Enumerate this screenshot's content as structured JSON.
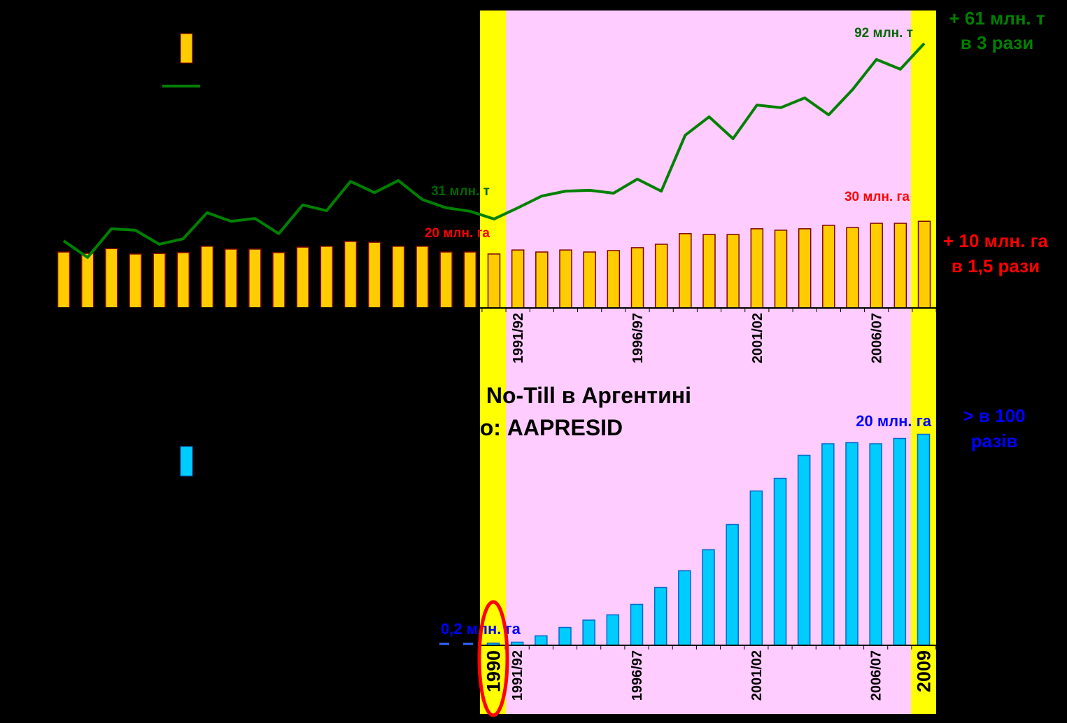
{
  "chart_data": [
    {
      "type": "bar",
      "categories": [
        null,
        null,
        null,
        null,
        null,
        null,
        null,
        null,
        null,
        null,
        null,
        null,
        null,
        null,
        null,
        null,
        null,
        null,
        null,
        "1991/92",
        null,
        null,
        null,
        null,
        "1996/97",
        null,
        null,
        null,
        null,
        "2001/02",
        null,
        null,
        null,
        null,
        "2006/07",
        null,
        null
      ],
      "series": [
        {
          "type": "bar",
          "color": "#ffcc00",
          "values": [
            19.5,
            19,
            20.7,
            18.8,
            19,
            19.3,
            21.5,
            20.5,
            20.5,
            19.3,
            21.2,
            21.5,
            23.2,
            22.9,
            21.5,
            21.5,
            19.5,
            19.5,
            18.8,
            20.2,
            19.5,
            20.2,
            19.5,
            20,
            21,
            22.2,
            25.9,
            25.6,
            25.6,
            27.6,
            27.1,
            27.6,
            28.8,
            28,
            29.5,
            29.5,
            30.2
          ]
        },
        {
          "type": "line",
          "color": "#008000",
          "values": [
            23.4,
            17.6,
            27.6,
            27.1,
            22.2,
            24.1,
            33.2,
            30.2,
            31.2,
            25.9,
            35.9,
            33.9,
            44.1,
            40.2,
            44.4,
            37.8,
            34.9,
            33.7,
            31,
            34.9,
            39,
            40.7,
            41,
            40,
            44.9,
            40.7,
            60.2,
            66.6,
            59,
            70.7,
            69.8,
            73.2,
            67.3,
            76.1,
            86.6,
            83.2,
            92.2
          ]
        }
      ],
      "ylim": [
        0,
        105
      ],
      "annotations": [
        "+ 61 млн. т",
        "в 3 рази",
        "92 млн. т",
        "31 млн. т",
        "20 млн. га",
        "30 млн. га",
        "+ 10 млн. га",
        "в 1,5 рази"
      ]
    },
    {
      "type": "bar",
      "title": [
        "ня No-Till в Аргентині",
        "ело: AAPRESID"
      ],
      "categories": [
        "1990",
        "1991/92",
        null,
        null,
        null,
        null,
        "1996/97",
        null,
        null,
        null,
        null,
        "2001/02",
        null,
        null,
        null,
        null,
        "2006/07",
        null,
        "2009"
      ],
      "series": [
        {
          "type": "bar",
          "color": "#00ccff",
          "values": [
            0.2,
            0.3,
            0.9,
            1.7,
            2.4,
            2.9,
            3.9,
            5.5,
            7.1,
            9.1,
            11.5,
            14.7,
            15.9,
            18.1,
            19.2,
            19.3,
            19.2,
            19.7,
            20.1
          ]
        }
      ],
      "ylim": [
        0,
        25
      ],
      "annotations": [
        "20 млн. га",
        "> в 100",
        "разів",
        "0,2 млн. га"
      ]
    }
  ]
}
